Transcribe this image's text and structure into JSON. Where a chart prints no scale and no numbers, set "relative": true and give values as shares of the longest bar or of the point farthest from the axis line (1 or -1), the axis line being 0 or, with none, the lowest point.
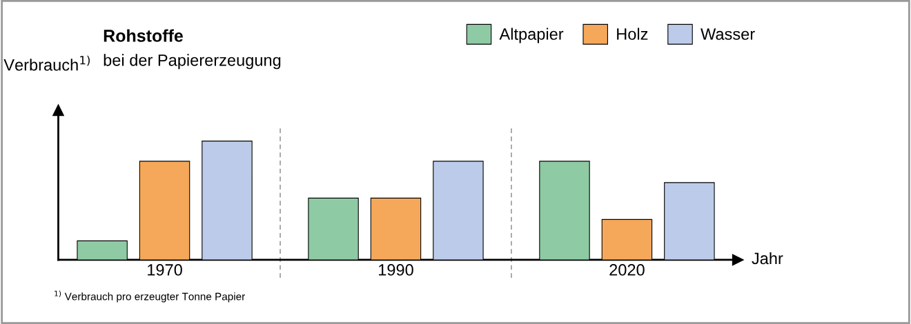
{
  "chart_data": {
    "type": "bar",
    "title": "Rohstoffe",
    "subtitle": "bei der Papiererzeugung",
    "xlabel": "Jahr",
    "ylabel": "Verbrauch$^{1)}$",
    "categories": [
      "1970",
      "1990",
      "2020"
    ],
    "relative": true,
    "legend": "top right",
    "series": [
      {
        "name": "Altpapier",
        "color": "#8ecaa4",
        "values": [
          0.16,
          0.52,
          0.83
        ]
      },
      {
        "name": "Holz",
        "color": "#f5a85a",
        "values": [
          0.83,
          0.52,
          0.34
        ]
      },
      {
        "name": "Wasser",
        "color": "#bccbea",
        "values": [
          1.0,
          0.83,
          0.65
        ]
      }
    ],
    "annotations": [
      "$^{1)}$ Verbrauch pro erzeugter Tonne Papier"
    ]
  }
}
